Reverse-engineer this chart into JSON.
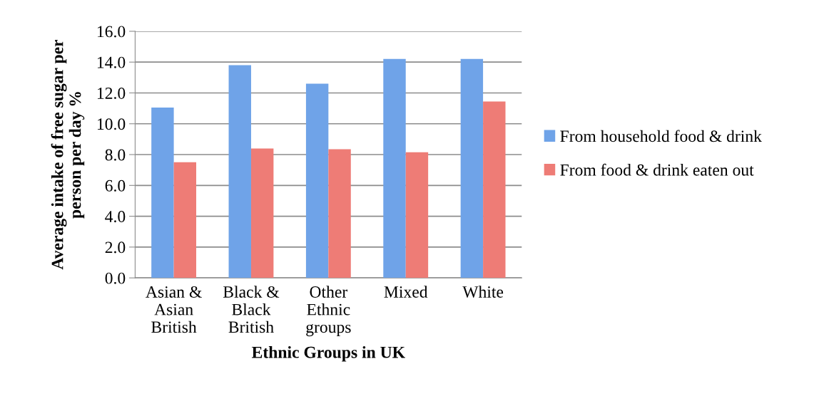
{
  "chart_data": {
    "type": "bar",
    "xlabel": "Ethnic Groups in UK",
    "ylabel": "Average intake of free sugar per\nperson per day %",
    "categories": [
      "Asian &\nAsian\nBritish",
      "Black &\nBlack\nBritish",
      "Other\nEthnic\ngroups",
      "Mixed",
      "White"
    ],
    "series": [
      {
        "name": "From household food & drink",
        "color": "#6fa3e8",
        "values": [
          11.05,
          13.8,
          12.6,
          14.2,
          14.2
        ]
      },
      {
        "name": "From food & drink eaten out",
        "color": "#ee7c76",
        "values": [
          7.5,
          8.4,
          8.35,
          8.15,
          11.45
        ]
      }
    ],
    "ylim": [
      0,
      16
    ],
    "yticks": [
      {
        "value": 0,
        "label": "0.0"
      },
      {
        "value": 2,
        "label": "2.0"
      },
      {
        "value": 4,
        "label": "4.0"
      },
      {
        "value": 6,
        "label": "6.0"
      },
      {
        "value": 8,
        "label": "8.0"
      },
      {
        "value": 10,
        "label": "10.0"
      },
      {
        "value": 12,
        "label": "12.0"
      },
      {
        "value": 14,
        "label": "14.0"
      },
      {
        "value": 16,
        "label": "16.0"
      }
    ],
    "grid": "y",
    "legend": "right"
  }
}
